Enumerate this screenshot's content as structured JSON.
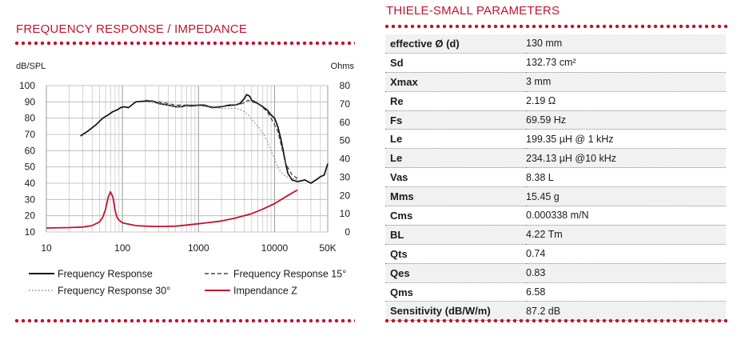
{
  "left_heading": "FREQUENCY RESPONSE / IMPEDANCE",
  "right_heading": "THIELE-SMALL PARAMETERS",
  "colors": {
    "accent": "#c8102e",
    "fr": "#111111",
    "fr15": "#444444",
    "fr30": "#888888",
    "impedance": "#c8102e"
  },
  "chart_data": {
    "type": "line",
    "title": "FREQUENCY RESPONSE / IMPEDANCE",
    "xscale": "log",
    "xlim": [
      10,
      50000
    ],
    "ylim": [
      10,
      100
    ],
    "y2lim": [
      0,
      80
    ],
    "ylabel": "dB/SPL",
    "y2label": "Ohms",
    "x_ticks": [
      {
        "v": 10,
        "label": "10"
      },
      {
        "v": 100,
        "label": "100"
      },
      {
        "v": 1000,
        "label": "1000"
      },
      {
        "v": 10000,
        "label": "10000"
      },
      {
        "v": 50000,
        "label": "50K"
      }
    ],
    "y_ticks": [
      10,
      20,
      30,
      40,
      50,
      60,
      70,
      80,
      90,
      100
    ],
    "y2_ticks": [
      0,
      10,
      20,
      30,
      40,
      50,
      60,
      70,
      80
    ],
    "grid": true,
    "legend_position": "bottom",
    "series": [
      {
        "name": "Frequency Response",
        "axis": "left",
        "color": "#111111",
        "dash": "",
        "x": [
          28,
          35,
          45,
          55,
          65,
          75,
          85,
          95,
          105,
          120,
          150,
          200,
          250,
          300,
          400,
          500,
          600,
          700,
          800,
          1000,
          1200,
          1500,
          2000,
          2500,
          3000,
          3500,
          4000,
          4300,
          4700,
          5000,
          5500,
          6000,
          7000,
          8000,
          9000,
          10000,
          11000,
          12000,
          13000,
          14000,
          15000,
          17000,
          20000,
          25000,
          30000,
          35000,
          40000,
          45000,
          50000
        ],
        "y": [
          69,
          72,
          76,
          80,
          82,
          84,
          85,
          86.5,
          87,
          86.5,
          90,
          90.5,
          90.5,
          89,
          88,
          87,
          87,
          88,
          87.5,
          88,
          88,
          86.5,
          87,
          88,
          88,
          89,
          92,
          94.5,
          93.5,
          91,
          90,
          89,
          87,
          85,
          82,
          80,
          75,
          68,
          60,
          52,
          46,
          42,
          41,
          42,
          40,
          42,
          44,
          45,
          52
        ]
      },
      {
        "name": "Frequency Response 15°",
        "axis": "left",
        "color": "#444444",
        "dash": "5,3",
        "x": [
          200,
          300,
          400,
          500,
          700,
          1000,
          1500,
          2000,
          2500,
          3000,
          3500,
          4000,
          4500,
          5000,
          5500,
          6000,
          7000,
          8000,
          9000,
          10000,
          11000,
          12000,
          14000,
          17000,
          20000
        ],
        "y": [
          91,
          90,
          89,
          88,
          88,
          88,
          87,
          87,
          87.5,
          88,
          88.5,
          89.5,
          91,
          90,
          89.5,
          89,
          86.5,
          84,
          80,
          76,
          72,
          65,
          52,
          45,
          43
        ]
      },
      {
        "name": "Frequency Response 30°",
        "axis": "left",
        "color": "#888888",
        "dash": "1.5,2.5",
        "x": [
          200,
          300,
          400,
          500,
          700,
          1000,
          1500,
          2000,
          2500,
          3000,
          3500,
          4000,
          4500,
          5000,
          5500,
          6000,
          7000,
          8000,
          9000,
          10000,
          11000,
          12000,
          14000,
          17000,
          20000
        ],
        "y": [
          90,
          89,
          88,
          87,
          87,
          87.5,
          86.5,
          86,
          86,
          86,
          85.5,
          84,
          82,
          79,
          77,
          75,
          71,
          66,
          60,
          55,
          50,
          47,
          44,
          43,
          42
        ]
      },
      {
        "name": "Impendance Z",
        "axis": "right",
        "color": "#c8102e",
        "dash": "",
        "x": [
          10,
          20,
          30,
          40,
          50,
          55,
          60,
          65,
          69.6,
          75,
          80,
          85,
          90,
          100,
          150,
          200,
          300,
          500,
          700,
          1000,
          2000,
          3000,
          5000,
          7000,
          10000,
          15000,
          20000
        ],
        "y": [
          2.2,
          2.4,
          2.7,
          3.5,
          5.5,
          8,
          12.5,
          19,
          22,
          19,
          12,
          8,
          6.5,
          5,
          3.5,
          3.2,
          3,
          3.2,
          3.8,
          4.5,
          6,
          7.5,
          10,
          12.5,
          15.5,
          20,
          23
        ]
      }
    ]
  },
  "ts_params": [
    {
      "name": "effective Ø (d)",
      "value": "130 mm"
    },
    {
      "name": "Sd",
      "value": "132.73 cm²"
    },
    {
      "name": "Xmax",
      "value": "3 mm"
    },
    {
      "name": "Re",
      "value": "2.19 Ω"
    },
    {
      "name": "Fs",
      "value": "69.59 Hz"
    },
    {
      "name": "Le",
      "value": "199.35 µH @ 1 kHz"
    },
    {
      "name": "Le",
      "value": "234.13 µH @10 kHz"
    },
    {
      "name": "Vas",
      "value": "8.38 L"
    },
    {
      "name": "Mms",
      "value": "15.45 g"
    },
    {
      "name": "Cms",
      "value": "0.000338 m/N"
    },
    {
      "name": "BL",
      "value": "4.22 Tm"
    },
    {
      "name": "Qts",
      "value": "0.74"
    },
    {
      "name": "Qes",
      "value": "0.83"
    },
    {
      "name": "Qms",
      "value": "6.58"
    },
    {
      "name": "Sensitivity (dB/W/m)",
      "value": "87.2 dB"
    }
  ]
}
